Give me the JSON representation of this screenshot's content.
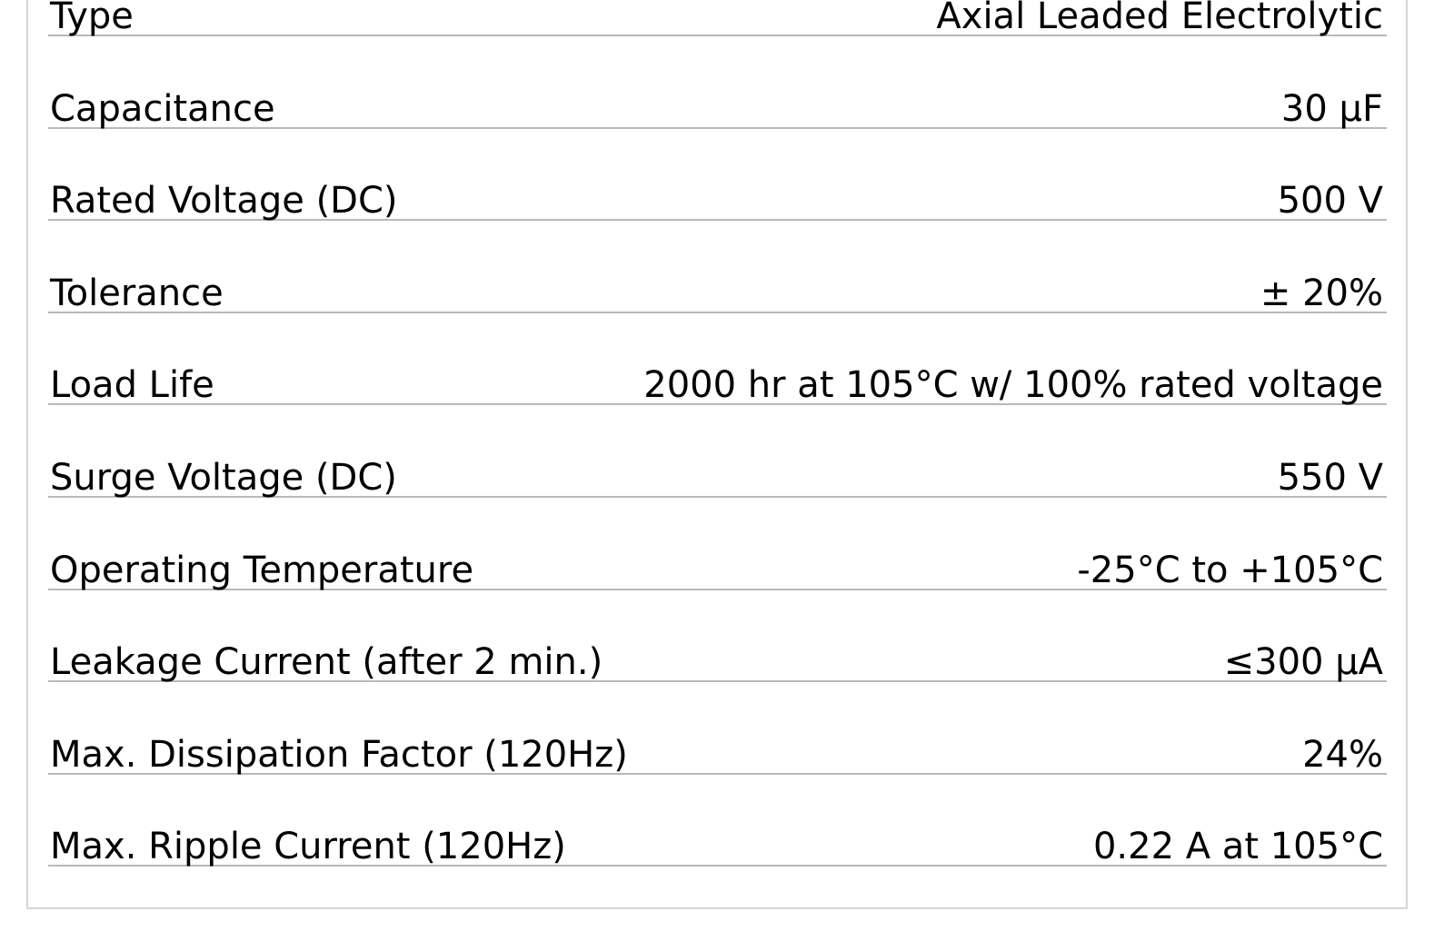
{
  "specs": [
    {
      "label": "Type",
      "value": "Axial Leaded Electrolytic"
    },
    {
      "label": "Capacitance",
      "value": "30 µF"
    },
    {
      "label": "Rated Voltage (DC)",
      "value": "500 V"
    },
    {
      "label": "Tolerance",
      "value": "± 20%"
    },
    {
      "label": "Load Life",
      "value": "2000 hr at 105°C w/ 100% rated voltage"
    },
    {
      "label": "Surge Voltage (DC)",
      "value": "550 V"
    },
    {
      "label": "Operating Temperature",
      "value": "-25°C to +105°C"
    },
    {
      "label": "Leakage Current (after 2 min.)",
      "value": "≤300 µA"
    },
    {
      "label": "Max. Dissipation Factor (120Hz)",
      "value": "24%"
    },
    {
      "label": "Max. Ripple Current (120Hz)",
      "value": "0.22 A at 105°C"
    }
  ]
}
